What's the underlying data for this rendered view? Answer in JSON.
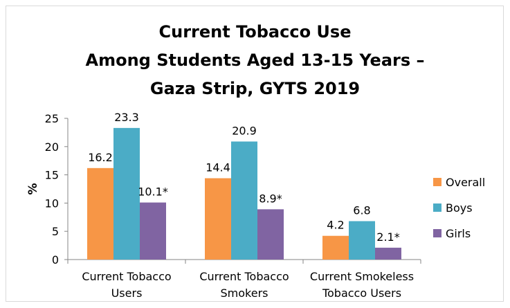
{
  "title_lines": [
    "Current Tobacco Use",
    "Among Students Aged 13-15 Years –",
    "Gaza Strip, GYTS 2019"
  ],
  "chart_data": {
    "type": "bar",
    "title": "Current Tobacco Use Among Students Aged 13-15 Years – Gaza Strip, GYTS 2019",
    "xlabel": "",
    "ylabel": "%",
    "ylim": [
      0,
      25
    ],
    "yticks": [
      0,
      5,
      10,
      15,
      20,
      25
    ],
    "grid": false,
    "legend": "right",
    "categories": [
      [
        "Current Tobacco",
        "Users"
      ],
      [
        "Current Tobacco",
        "Smokers"
      ],
      [
        "Current Smokeless",
        "Tobacco Users"
      ]
    ],
    "series": [
      {
        "name": "Overall",
        "color": "#f79646",
        "values": [
          16.2,
          14.4,
          4.2
        ],
        "labels": [
          "16.2",
          "14.4",
          "4.2"
        ]
      },
      {
        "name": "Boys",
        "color": "#4bacc6",
        "values": [
          23.3,
          20.9,
          6.8
        ],
        "labels": [
          "23.3",
          "20.9",
          "6.8"
        ]
      },
      {
        "name": "Girls",
        "color": "#8064a2",
        "values": [
          10.1,
          8.9,
          2.1
        ],
        "labels": [
          "10.1*",
          "8.9*",
          "2.1*"
        ]
      }
    ]
  }
}
